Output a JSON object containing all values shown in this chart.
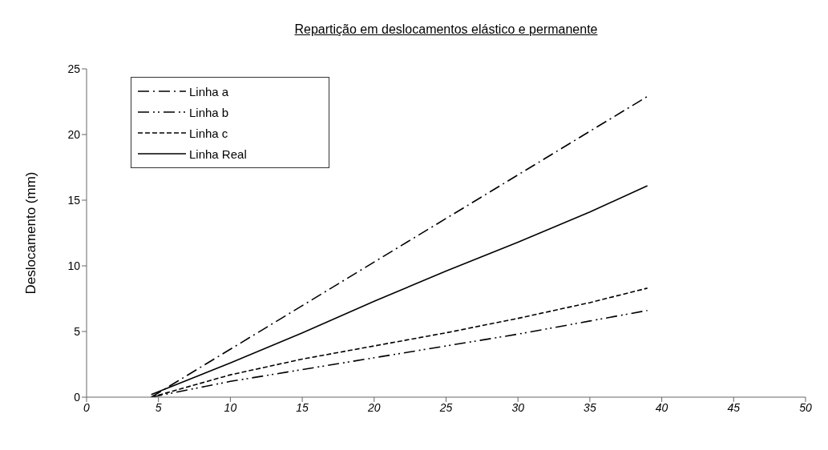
{
  "chart_data": {
    "type": "line",
    "title": "Repartição em deslocamentos elástico e permanente",
    "ylabel": "Deslocamento (mm)",
    "xlim": [
      0,
      50
    ],
    "xticks": [
      0,
      5,
      10,
      15,
      20,
      25,
      30,
      35,
      40,
      45,
      50
    ],
    "ylim": [
      0,
      25
    ],
    "yticks": [
      0,
      5,
      10,
      15,
      20,
      25
    ],
    "grid": false,
    "legend": "top left",
    "marker": "none",
    "series": [
      {
        "name": "Linha a",
        "color": "#000000",
        "line_style": "dashdot",
        "x": [
          4.5,
          39
        ],
        "values": [
          0,
          22.9
        ]
      },
      {
        "name": "Linha b",
        "color": "#000000",
        "line_style": "dashdotdot",
        "x": [
          4.5,
          10,
          20,
          25,
          30,
          35,
          39
        ],
        "values": [
          0,
          1.2,
          3.0,
          3.9,
          4.8,
          5.8,
          6.6
        ]
      },
      {
        "name": "Linha c",
        "color": "#000000",
        "line_style": "dashed",
        "x": [
          4.5,
          10,
          15,
          20,
          25,
          30,
          35,
          39
        ],
        "values": [
          0,
          1.7,
          2.9,
          3.9,
          4.9,
          6.0,
          7.2,
          8.3
        ]
      },
      {
        "name": "Linha Real",
        "color": "#000000",
        "line_style": "solid",
        "x": [
          4.5,
          10,
          15,
          20,
          25,
          30,
          35,
          39
        ],
        "values": [
          0.2,
          2.6,
          4.9,
          7.3,
          9.6,
          11.8,
          14.1,
          16.1
        ]
      }
    ]
  }
}
